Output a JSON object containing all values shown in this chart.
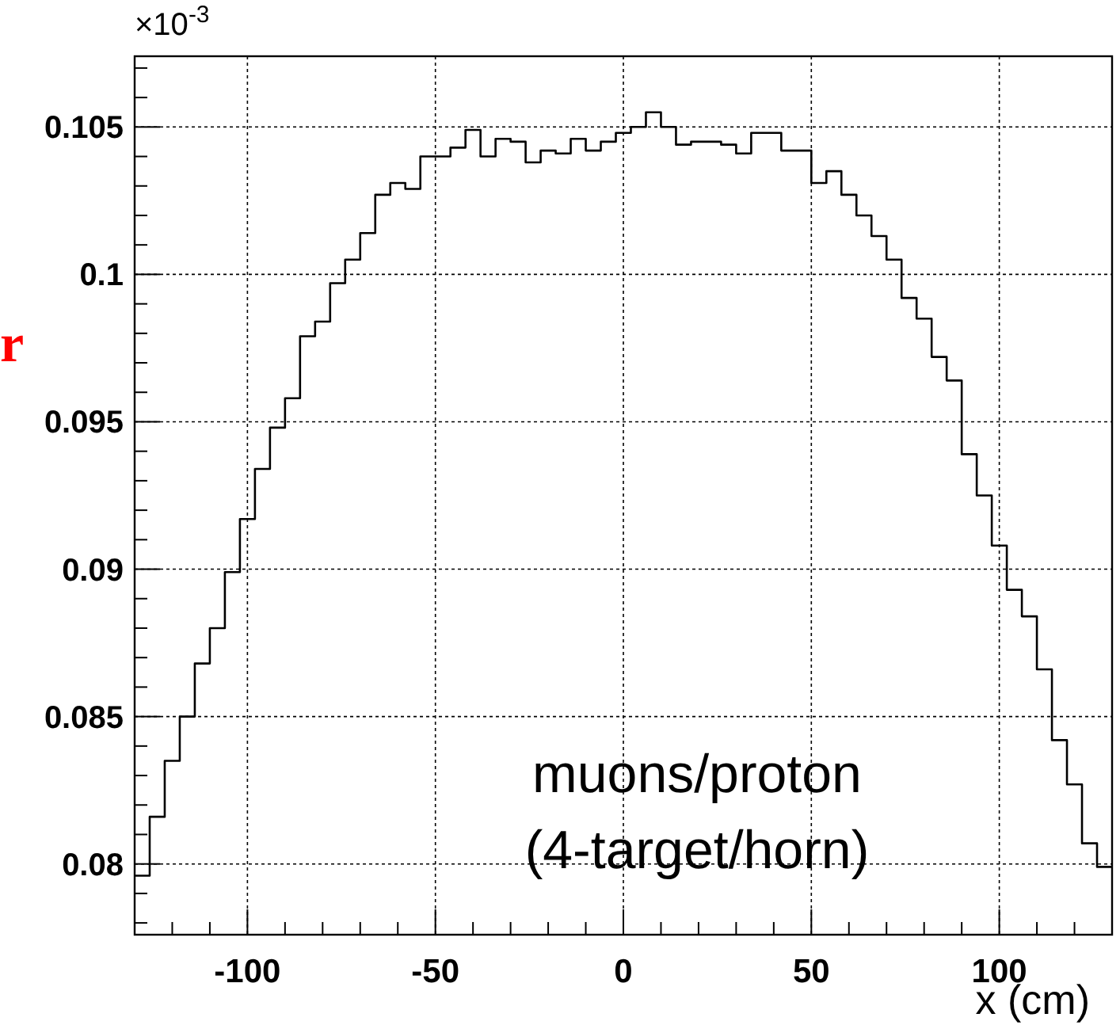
{
  "chart_data": {
    "type": "histogram",
    "xlabel": "x (cm)",
    "annotations": [
      "×10$^{-3}$",
      "muons/proton\n(4-target/horn)",
      "r"
    ],
    "bins": [
      -130,
      -126,
      -122,
      -118,
      -114,
      -110,
      -106,
      -102,
      -98,
      -94,
      -90,
      -86,
      -82,
      -78,
      -74,
      -70,
      -66,
      -62,
      -58,
      -54,
      -50,
      -46,
      -42,
      -38,
      -34,
      -30,
      -26,
      -22,
      -18,
      -14,
      -10,
      -6,
      -2,
      2,
      6,
      10,
      14,
      18,
      22,
      26,
      30,
      34,
      38,
      42,
      46,
      50,
      54,
      58,
      62,
      66,
      70,
      74,
      78,
      82,
      86,
      90,
      94,
      98,
      102,
      106,
      110,
      114,
      118,
      122,
      126,
      130
    ],
    "values": [
      0.0796,
      0.0816,
      0.0835,
      0.085,
      0.0868,
      0.088,
      0.0899,
      0.0917,
      0.0934,
      0.0948,
      0.0958,
      0.0979,
      0.0984,
      0.0997,
      0.1005,
      0.1014,
      0.1027,
      0.1031,
      0.1029,
      0.104,
      0.104,
      0.1043,
      0.1049,
      0.104,
      0.1046,
      0.1045,
      0.1038,
      0.1042,
      0.1041,
      0.1046,
      0.1042,
      0.1045,
      0.1048,
      0.105,
      0.1055,
      0.105,
      0.1044,
      0.1045,
      0.1045,
      0.1044,
      0.1041,
      0.1048,
      0.1048,
      0.1042,
      0.1042,
      0.1031,
      0.1035,
      0.1027,
      0.102,
      0.1013,
      0.1005,
      0.0992,
      0.0985,
      0.0972,
      0.0964,
      0.0939,
      0.0925,
      0.0908,
      0.0893,
      0.0884,
      0.0866,
      0.0842,
      0.0827,
      0.0807,
      0.0799
    ],
    "color": "#000000",
    "xlim": [
      -130,
      130
    ],
    "ylim": [
      0.0776,
      0.1074
    ],
    "xticks": [
      {
        "value": -120,
        "label": null
      },
      {
        "value": -110,
        "label": null
      },
      -100,
      {
        "value": -90,
        "label": null
      },
      {
        "value": -80,
        "label": null
      },
      {
        "value": -70,
        "label": null
      },
      {
        "value": -60,
        "label": null
      },
      -50,
      {
        "value": -40,
        "label": null
      },
      {
        "value": -30,
        "label": null
      },
      {
        "value": -20,
        "label": null
      },
      {
        "value": -10,
        "label": null
      },
      0,
      {
        "value": 10,
        "label": null
      },
      {
        "value": 20,
        "label": null
      },
      {
        "value": 30,
        "label": null
      },
      {
        "value": 40,
        "label": null
      },
      50,
      {
        "value": 60,
        "label": null
      },
      {
        "value": 70,
        "label": null
      },
      {
        "value": 80,
        "label": null
      },
      {
        "value": 90,
        "label": null
      },
      100,
      {
        "value": 110,
        "label": null
      },
      {
        "value": 120,
        "label": null
      }
    ],
    "yticks": [
      {
        "value": 0.078,
        "label": null
      },
      {
        "value": 0.079,
        "label": null
      },
      0.08,
      {
        "value": 0.081,
        "label": null
      },
      {
        "value": 0.082,
        "label": null
      },
      {
        "value": 0.083,
        "label": null
      },
      {
        "value": 0.084,
        "label": null
      },
      0.085,
      {
        "value": 0.086,
        "label": null
      },
      {
        "value": 0.087,
        "label": null
      },
      {
        "value": 0.088,
        "label": null
      },
      {
        "value": 0.089,
        "label": null
      },
      0.09,
      {
        "value": 0.091,
        "label": null
      },
      {
        "value": 0.092,
        "label": null
      },
      {
        "value": 0.093,
        "label": null
      },
      {
        "value": 0.094,
        "label": null
      },
      0.095,
      {
        "value": 0.096,
        "label": null
      },
      {
        "value": 0.097,
        "label": null
      },
      {
        "value": 0.098,
        "label": null
      },
      {
        "value": 0.099,
        "label": null
      },
      0.1,
      {
        "value": 0.101,
        "label": null
      },
      {
        "value": 0.102,
        "label": null
      },
      {
        "value": 0.103,
        "label": null
      },
      {
        "value": 0.104,
        "label": null
      },
      0.105,
      {
        "value": 0.106,
        "label": null
      },
      {
        "value": 0.107,
        "label": null
      }
    ],
    "grid": true
  }
}
